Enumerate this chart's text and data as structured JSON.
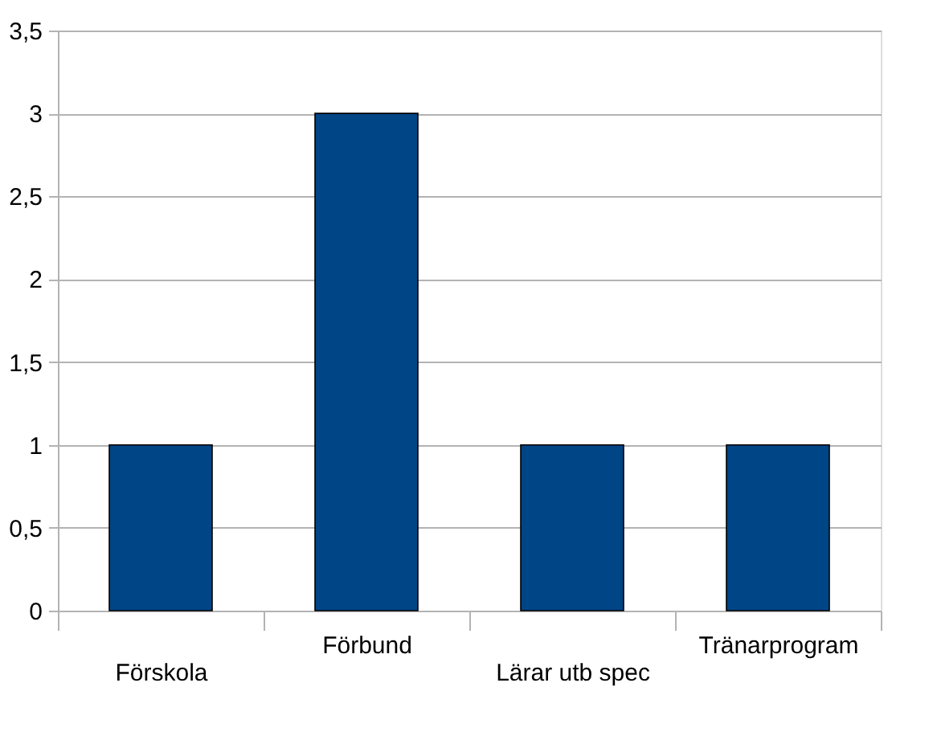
{
  "chart_data": {
    "type": "bar",
    "categories": [
      "Förskola",
      "Förbund",
      "Lärar utb spec",
      "Tränarprogram"
    ],
    "values": [
      1,
      3,
      1,
      1
    ],
    "color": "#004586",
    "ylim": [
      0,
      3.5
    ],
    "yticks": [
      0,
      {
        "value": 0.5,
        "label": "0,5"
      },
      1,
      {
        "value": 1.5,
        "label": "1,5"
      },
      2,
      {
        "value": 2.5,
        "label": "2,5"
      },
      3,
      {
        "value": 3.5,
        "label": "3,5"
      }
    ],
    "grid": "y"
  }
}
